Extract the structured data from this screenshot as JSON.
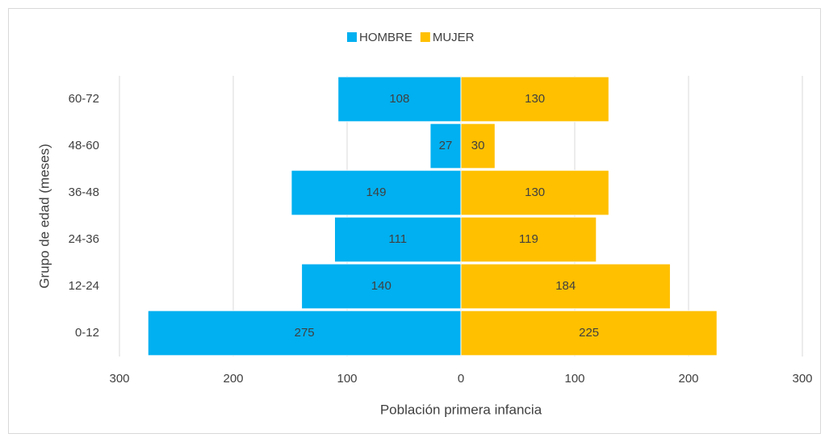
{
  "chart_data": {
    "type": "bar",
    "orientation": "horizontal",
    "x_label": "Población primera infancia",
    "y_label": "Grupo de edad (meses)",
    "categories": [
      "60-72",
      "48-60",
      "36-48",
      "24-36",
      "12-24",
      "0-12"
    ],
    "series": [
      {
        "name": "HOMBRE",
        "color": "#00b0f0",
        "values": [
          -108,
          -27,
          -149,
          -111,
          -140,
          -275
        ],
        "value_labels": [
          "108",
          "27",
          "149",
          "111",
          "140",
          "275"
        ]
      },
      {
        "name": "MUJER",
        "color": "#ffc000",
        "values": [
          130,
          30,
          130,
          119,
          184,
          225
        ]
      }
    ],
    "xlim": [
      -300,
      300
    ],
    "xticks": [
      {
        "value": -300,
        "label": "300"
      },
      {
        "value": -200,
        "label": "200"
      },
      {
        "value": -100,
        "label": "100"
      },
      0,
      100,
      200,
      300
    ],
    "grid": true,
    "legend": "top"
  }
}
